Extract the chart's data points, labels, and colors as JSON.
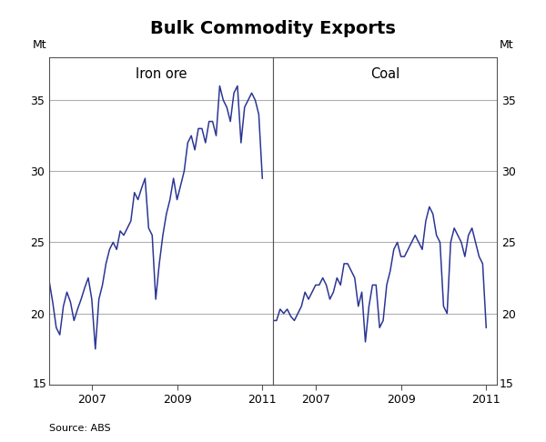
{
  "title": "Bulk Commodity Exports",
  "source": "Source: ABS",
  "left_label": "Iron ore",
  "right_label": "Coal",
  "ylabel_left": "Mt",
  "ylabel_right": "Mt",
  "ylim": [
    15,
    38
  ],
  "yticks": [
    15,
    20,
    25,
    30,
    35
  ],
  "ytick_labels": [
    "",
    "20",
    "25",
    "30",
    "35"
  ],
  "bottom_label": "15",
  "line_color": "#2B3694",
  "line_width": 1.1,
  "iron_ore": [
    22.3,
    20.8,
    19.0,
    18.5,
    20.5,
    21.5,
    20.8,
    19.5,
    20.3,
    21.0,
    21.8,
    22.5,
    21.0,
    17.5,
    21.0,
    22.0,
    23.5,
    24.5,
    25.0,
    24.5,
    25.8,
    25.5,
    26.0,
    26.5,
    28.5,
    28.0,
    28.8,
    29.5,
    26.0,
    25.5,
    21.0,
    23.5,
    25.5,
    27.0,
    28.0,
    29.5,
    28.0,
    29.0,
    30.0,
    32.0,
    32.5,
    31.5,
    33.0,
    33.0,
    32.0,
    33.5,
    33.5,
    32.5,
    36.0,
    35.0,
    34.5,
    33.5,
    35.5,
    36.0,
    32.0,
    34.5,
    35.0,
    35.5,
    35.0,
    34.0,
    29.5
  ],
  "coal": [
    19.5,
    19.5,
    20.3,
    20.0,
    20.3,
    19.8,
    19.5,
    20.0,
    20.5,
    21.5,
    21.0,
    21.5,
    22.0,
    22.0,
    22.5,
    22.0,
    21.0,
    21.5,
    22.5,
    22.0,
    23.5,
    23.5,
    23.0,
    22.5,
    20.5,
    21.5,
    18.0,
    20.5,
    22.0,
    22.0,
    19.0,
    19.5,
    22.0,
    23.0,
    24.5,
    25.0,
    24.0,
    24.0,
    24.5,
    25.0,
    25.5,
    25.0,
    24.5,
    26.5,
    27.5,
    27.0,
    25.5,
    25.0,
    20.5,
    20.0,
    25.0,
    26.0,
    25.5,
    25.0,
    24.0,
    25.5,
    26.0,
    25.0,
    24.0,
    23.5,
    19.0
  ],
  "xticks": [
    2007,
    2009,
    2011
  ],
  "xticklabels": [
    "2007",
    "2009",
    "2011"
  ],
  "xlim": [
    2006.0,
    2011.25
  ],
  "background_color": "#ffffff",
  "grid_color": "#b0b0b0",
  "spine_color": "#555555"
}
